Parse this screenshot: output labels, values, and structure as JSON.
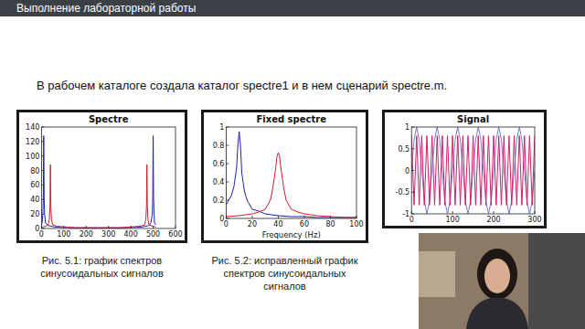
{
  "header": {
    "title": "Выполнение лабораторной работы"
  },
  "text": "В рабочем каталоге создала каталог spectre1 и в нем сценарий spectre.m.",
  "chart_data": [
    {
      "type": "line",
      "title": "Spectre",
      "xlim": [
        0,
        600
      ],
      "xticks": [
        0,
        100,
        200,
        300,
        400,
        500,
        600
      ],
      "ylim": [
        0,
        140
      ],
      "yticks": [
        0,
        20,
        40,
        60,
        80,
        100,
        120,
        140
      ],
      "series": [
        {
          "color": "#1f1fb4",
          "x": [
            0,
            3,
            6,
            8,
            10,
            12,
            14,
            18,
            30,
            60,
            150,
            250,
            350,
            450,
            480,
            490,
            496,
            498,
            500,
            502,
            504,
            506,
            512
          ],
          "values": [
            5,
            8,
            20,
            40,
            128,
            40,
            20,
            8,
            4,
            2,
            1,
            1,
            1,
            2,
            4,
            8,
            20,
            40,
            128,
            40,
            20,
            8,
            5
          ]
        },
        {
          "color": "#d01c2c",
          "x": [
            0,
            20,
            30,
            35,
            38,
            40,
            42,
            45,
            50,
            70,
            150,
            250,
            350,
            440,
            462,
            467,
            470,
            472,
            474,
            477,
            482,
            500,
            512
          ],
          "values": [
            2,
            3,
            5,
            12,
            30,
            88,
            30,
            12,
            5,
            3,
            1,
            1,
            1,
            3,
            5,
            12,
            30,
            88,
            30,
            12,
            5,
            3,
            2
          ]
        }
      ]
    },
    {
      "type": "line",
      "title": "Fixed spectre",
      "xlabel": "Frequency (Hz)",
      "xlim": [
        0,
        100
      ],
      "xticks": [
        0,
        20,
        40,
        60,
        80,
        100
      ],
      "ylim": [
        0,
        1
      ],
      "yticks": [
        0,
        0.2,
        0.4,
        0.6,
        0.8,
        1
      ],
      "series": [
        {
          "color": "#1f1fb4",
          "x": [
            0,
            2,
            4,
            6,
            8,
            9,
            10,
            11,
            12,
            14,
            16,
            18,
            20,
            25,
            30,
            40,
            50,
            60,
            70,
            80,
            90,
            100
          ],
          "values": [
            0.15,
            0.2,
            0.25,
            0.35,
            0.55,
            0.8,
            0.95,
            0.8,
            0.5,
            0.3,
            0.2,
            0.15,
            0.1,
            0.08,
            0.05,
            0.03,
            0.02,
            0.02,
            0.01,
            0.01,
            0.01,
            0.01
          ]
        },
        {
          "color": "#d01c2c",
          "x": [
            0,
            10,
            20,
            25,
            30,
            34,
            36,
            38,
            39,
            40,
            41,
            42,
            44,
            46,
            50,
            55,
            60,
            70,
            80,
            90,
            100
          ],
          "values": [
            0.02,
            0.03,
            0.05,
            0.07,
            0.1,
            0.2,
            0.35,
            0.55,
            0.68,
            0.72,
            0.68,
            0.55,
            0.35,
            0.2,
            0.1,
            0.07,
            0.05,
            0.03,
            0.02,
            0.01,
            0.01
          ]
        }
      ]
    },
    {
      "type": "line",
      "title": "Signal",
      "xlim": [
        0,
        300
      ],
      "xticks": [
        0,
        100,
        200,
        300
      ],
      "ylim": [
        -1,
        1
      ],
      "yticks": [
        -1,
        -0.5,
        0,
        0.5,
        1
      ],
      "x": [
        0,
        6.25,
        12.5,
        18.75,
        25,
        31.25,
        37.5,
        43.75,
        50,
        56.25,
        62.5,
        68.75,
        75,
        81.25,
        87.5,
        93.75,
        100,
        106.25,
        112.5,
        118.75,
        125,
        131.25,
        137.5,
        143.75,
        150,
        156.25,
        162.5,
        168.75,
        175,
        181.25,
        187.5,
        193.75,
        200,
        206.25,
        212.5,
        218.75,
        225,
        231.25,
        237.5,
        243.75,
        250,
        256.25,
        262.5,
        268.75,
        275,
        281.25,
        287.5,
        293.75,
        300
      ],
      "series": [
        {
          "color": "#7a7ad0",
          "values": [
            0,
            0.71,
            1,
            0.71,
            0,
            -0.71,
            -1,
            -0.71,
            0,
            0.71,
            1,
            0.71,
            0,
            -0.71,
            -1,
            -0.71,
            0,
            0.71,
            1,
            0.71,
            0,
            -0.71,
            -1,
            -0.71,
            0,
            0.71,
            1,
            0.71,
            0,
            -0.71,
            -1,
            -0.71,
            0,
            0.71,
            1,
            0.71,
            0,
            -0.71,
            -1,
            -0.71,
            0,
            0.71,
            1,
            0.71,
            0,
            -0.71,
            -1,
            -0.71,
            0
          ]
        },
        {
          "color": "#d0206a",
          "values": [
            0.8,
            -0.8,
            0.8,
            -0.8,
            0.8,
            -0.8,
            0.8,
            -0.8,
            0.8,
            -0.8,
            0.8,
            -0.8,
            0.8,
            -0.8,
            0.8,
            -0.8,
            0.8,
            -0.8,
            0.8,
            -0.8,
            0.8,
            -0.8,
            0.8,
            -0.8,
            0.8,
            -0.8,
            0.8,
            -0.8,
            0.8,
            -0.8,
            0.8,
            -0.8,
            0.8,
            -0.8,
            0.8,
            -0.8,
            0.8,
            -0.8,
            0.8,
            -0.8,
            0.8,
            -0.8,
            0.8,
            -0.8,
            0.8,
            -0.8,
            0.8,
            -0.8,
            0.8
          ]
        }
      ]
    }
  ],
  "captions": [
    "Рис. 5.1: график спектров синусоидальных сигналов",
    "Рис. 5.2: исправленный график спектров синусоидальных сигналов"
  ]
}
